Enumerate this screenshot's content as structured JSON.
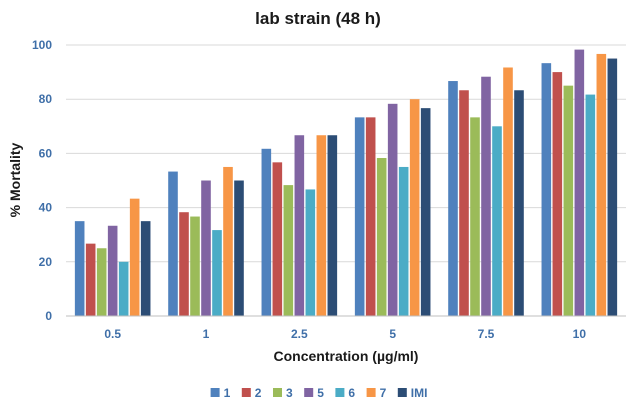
{
  "chart_data": {
    "type": "bar",
    "title": "lab strain (48 h)",
    "xlabel": "Concentration (µg/ml)",
    "ylabel": "% Mortality",
    "ylim": [
      0,
      100
    ],
    "yticks": [
      "0",
      "20",
      "40",
      "60",
      "80",
      "100"
    ],
    "grid": true,
    "legend": "bottom",
    "categories": [
      "0.5",
      "1",
      "2.5",
      "5",
      "7.5",
      "10"
    ],
    "series": [
      {
        "name": "1",
        "color": "#4f81bd",
        "values": [
          35,
          53.3,
          61.7,
          73.3,
          86.7,
          93.3
        ]
      },
      {
        "name": "2",
        "color": "#c0504d",
        "values": [
          26.7,
          38.3,
          56.7,
          73.3,
          83.3,
          90
        ]
      },
      {
        "name": "3",
        "color": "#9bbb59",
        "values": [
          25,
          36.7,
          48.3,
          58.3,
          73.3,
          85
        ]
      },
      {
        "name": "5",
        "color": "#8064a2",
        "values": [
          33.3,
          50,
          66.7,
          78.3,
          88.3,
          98.3
        ]
      },
      {
        "name": "6",
        "color": "#4bacc6",
        "values": [
          20,
          31.7,
          46.7,
          55,
          70,
          81.7
        ]
      },
      {
        "name": "7",
        "color": "#f79646",
        "values": [
          43.3,
          55,
          66.7,
          80,
          91.7,
          96.7
        ]
      },
      {
        "name": "IMI",
        "color": "#2c4d75",
        "values": [
          35,
          50,
          66.7,
          76.7,
          83.3,
          95
        ]
      }
    ]
  }
}
